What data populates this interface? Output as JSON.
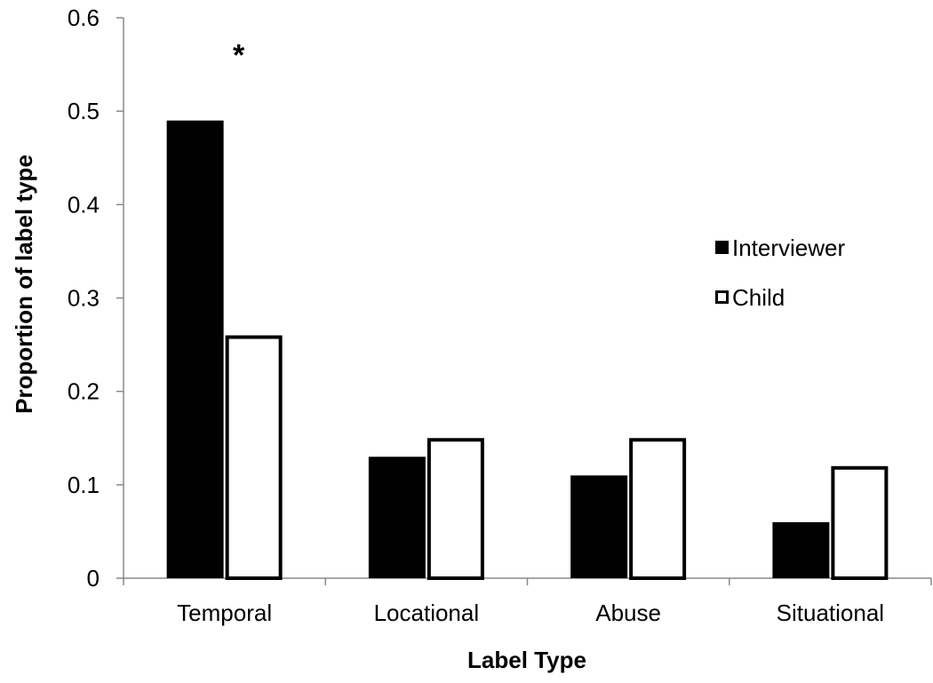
{
  "chart_data": {
    "type": "bar",
    "title": "",
    "xlabel": "Label Type",
    "ylabel": "Proportion of label type",
    "categories": [
      "Temporal",
      "Locational",
      "Abuse",
      "Situational"
    ],
    "series": [
      {
        "name": "Interviewer",
        "values": [
          0.49,
          0.13,
          0.11,
          0.06
        ],
        "color": "#000000",
        "fill": "solid"
      },
      {
        "name": "Child",
        "values": [
          0.26,
          0.15,
          0.15,
          0.12
        ],
        "color": "#000000",
        "fill": "hollow"
      }
    ],
    "ylim": [
      0,
      0.6
    ],
    "yticks": [
      "0",
      "0.1",
      "0.2",
      "0.3",
      "0.4",
      "0.5",
      "0.6"
    ],
    "yticks_values": [
      0,
      0.1,
      0.2,
      0.3,
      0.4,
      0.5,
      0.6
    ],
    "grid": false,
    "legend": "right",
    "annotations": [
      {
        "text": "*",
        "category": "Temporal",
        "y": 0.57
      }
    ]
  }
}
